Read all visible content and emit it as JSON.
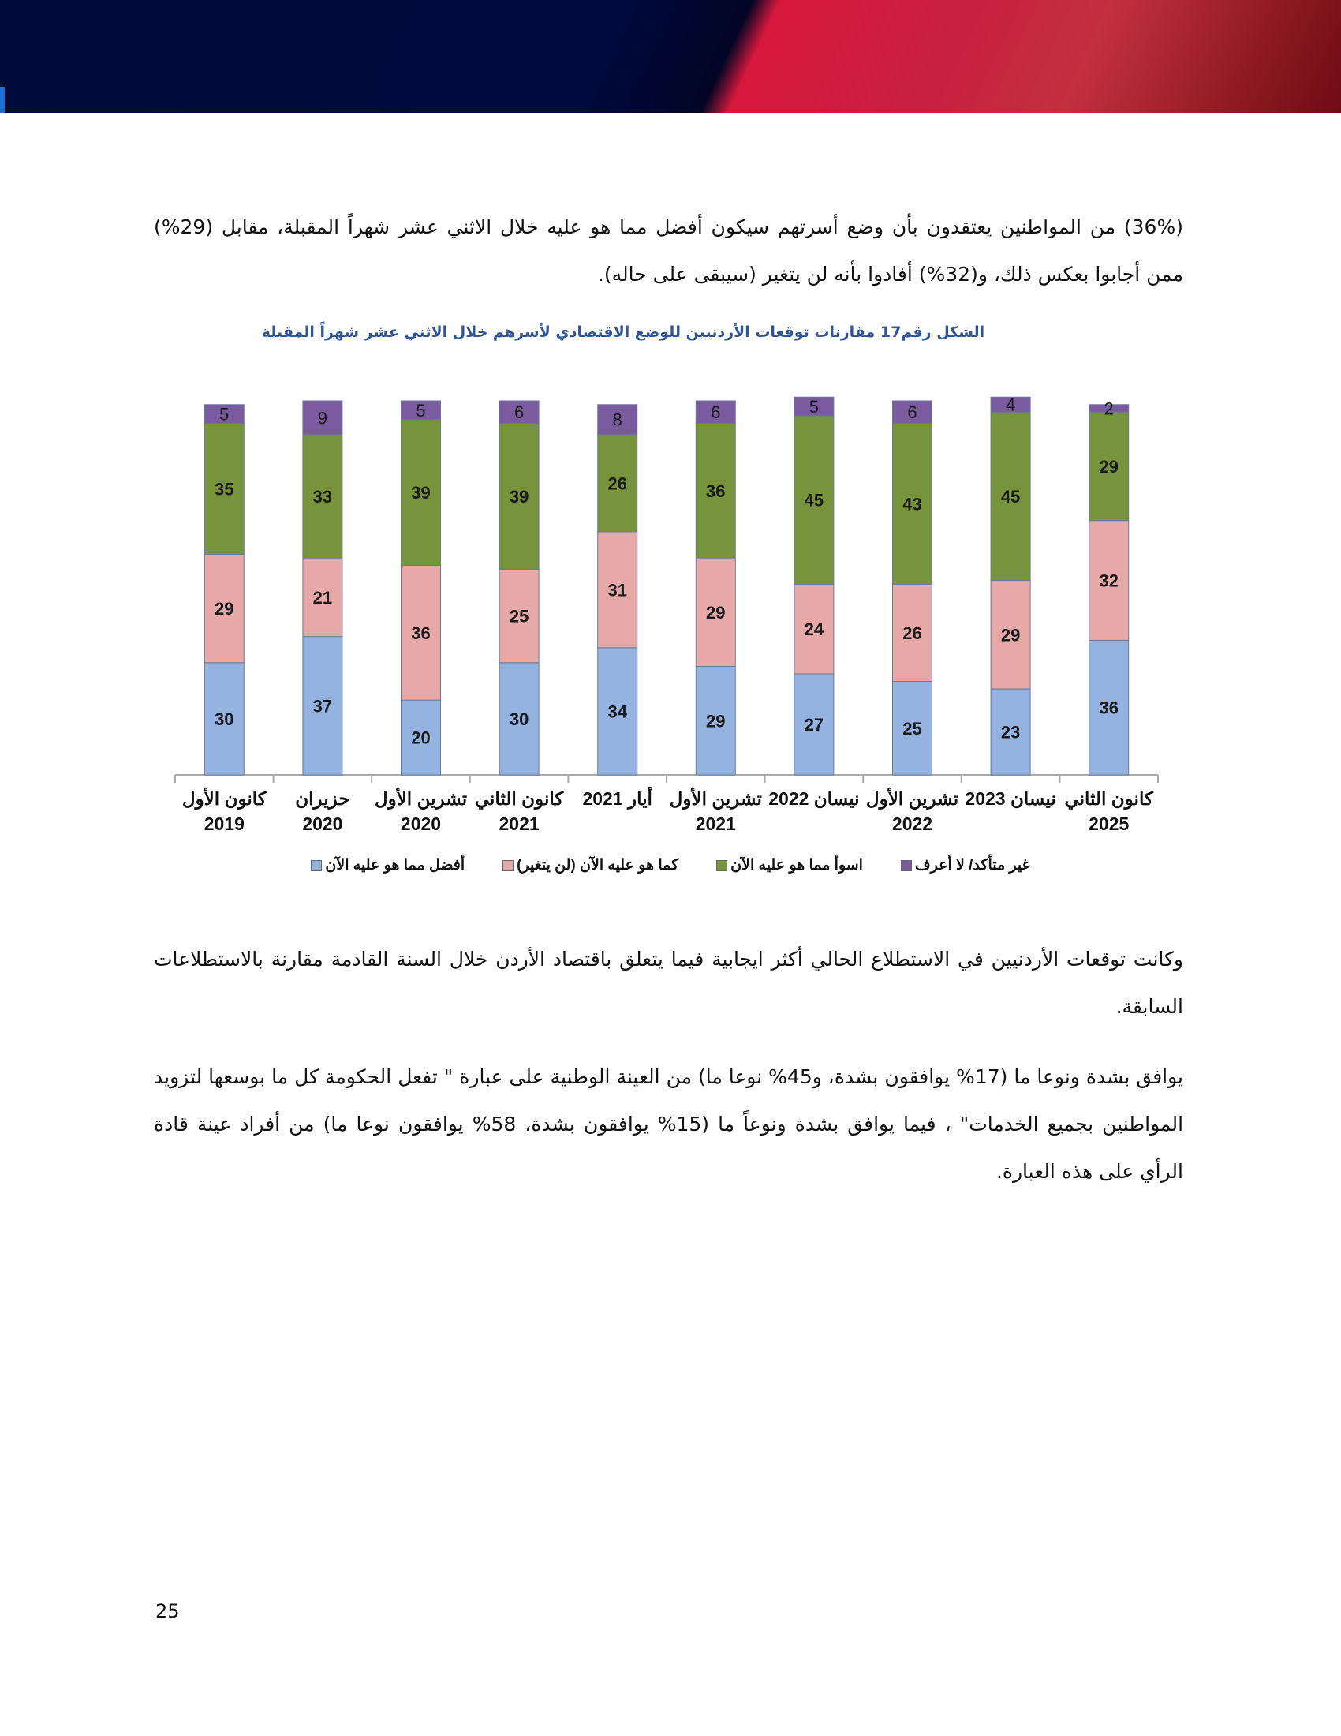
{
  "paragraphs": {
    "p1": "(36%) من المواطنين يعتقدون بأن وضع أسرتهم سيكون أفضل مما هو عليه خلال الاثني عشر شهراً المقبلة، مقابل (29%) ممن أجابوا بعكس ذلك، و(32%) أفادوا بأنه لن يتغير (سيبقى على حاله).",
    "p2": "وكانت توقعات الأردنيين في الاستطلاع الحالي أكثر ايجابية فيما يتعلق باقتصاد الأردن خلال السنة القادمة مقارنة بالاستطلاعات السابقة.",
    "p3": "يوافق بشدة ونوعا ما (17% يوافقون بشدة، و45% نوعا ما) من العينة الوطنية على عبارة \" تفعل الحكومة كل ما بوسعها لتزويد المواطنين بجميع الخدمات\" ، فيما يوافق بشدة ونوعاً ما (15% يوافقون بشدة، 58% يوافقون نوعا ما) من أفراد عينة قادة الرأي على هذه العبارة."
  },
  "page_number": "25",
  "chart_data": {
    "type": "bar",
    "stacked": true,
    "title": "الشكل رقم17   مقارنات توقعات الأردنيين للوضع الاقتصادي لأسرهم خلال الاثني عشر شهراً المقبلة",
    "categories": [
      [
        "كانون الأول",
        "2019"
      ],
      [
        "حزيران",
        "2020"
      ],
      [
        "تشرين الأول",
        "2020"
      ],
      [
        "كانون الثاني",
        "2021"
      ],
      [
        "أيار 2021",
        ""
      ],
      [
        "تشرين الأول",
        "2021"
      ],
      [
        "نيسان 2022",
        ""
      ],
      [
        "تشرين الأول",
        "2022"
      ],
      [
        "نيسان 2023",
        ""
      ],
      [
        "كانون الثاني",
        "2025"
      ]
    ],
    "series": [
      {
        "name": "أفضل مما هو عليه الآن",
        "color": "#95b3e0",
        "values": [
          30,
          37,
          20,
          30,
          34,
          29,
          27,
          25,
          23,
          36
        ]
      },
      {
        "name": "كما هو عليه الآن (لن يتغير)",
        "color": "#e6a9a8",
        "values": [
          29,
          21,
          36,
          25,
          31,
          29,
          24,
          26,
          29,
          32
        ]
      },
      {
        "name": "اسوأ مما هو عليه الآن",
        "color": "#77933c",
        "values": [
          35,
          33,
          39,
          39,
          26,
          36,
          45,
          43,
          45,
          29
        ]
      },
      {
        "name": "غير متأكد/ لا أعرف",
        "color": "#7a5ba0",
        "values": [
          5,
          9,
          5,
          6,
          8,
          6,
          5,
          6,
          4,
          2
        ]
      }
    ],
    "ylim": [
      0,
      100
    ],
    "legend_position": "bottom",
    "grid": false
  }
}
